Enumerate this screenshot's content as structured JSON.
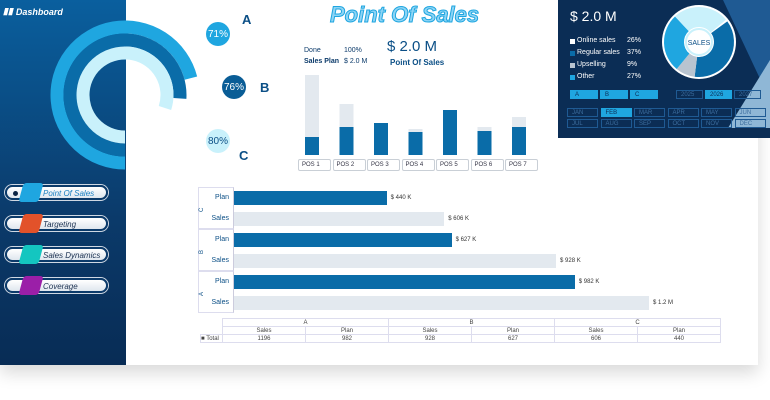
{
  "app": {
    "title": "Dashboard",
    "page_title": "Point Of Sales"
  },
  "sidebar": {
    "items": [
      {
        "label": "Point Of Sales",
        "color": "#1fa6e0",
        "active": true
      },
      {
        "label": "Targeting",
        "color": "#e2522a"
      },
      {
        "label": "Sales Dynamics",
        "color": "#14c6c0"
      },
      {
        "label": "Coverage",
        "color": "#9b1fa8"
      }
    ]
  },
  "rings": [
    {
      "group": "A",
      "percent": 71,
      "label": "71%",
      "color": "#1fa6e0"
    },
    {
      "group": "B",
      "percent": 76,
      "label": "76%",
      "color": "#0a6ca8"
    },
    {
      "group": "C",
      "percent": 80,
      "label": "80%",
      "color": "#c9f1fb"
    }
  ],
  "summary": {
    "done_label": "Done",
    "done_value": "100%",
    "plan_label": "Sales Plan",
    "plan_value": "$ 2.0 M",
    "total": "$ 2.0 M",
    "total_caption": "Point Of Sales"
  },
  "pos_chart": {
    "type": "bar",
    "categories": [
      "POS 1",
      "POS 2",
      "POS 3",
      "POS 4",
      "POS 5",
      "POS 6",
      "POS 7"
    ],
    "plan": [
      80,
      51,
      32,
      26,
      45,
      28,
      38
    ],
    "sales": [
      18,
      28,
      32,
      23,
      45,
      24,
      28
    ],
    "colors": {
      "plan": "#e3e9ef",
      "sales": "#0a6ca8"
    }
  },
  "panel": {
    "total": "$ 2.0 M",
    "donut_label": "SALES",
    "legend": [
      {
        "label": "Online sales",
        "value": "26%",
        "pct": 26,
        "color": "#ffffff",
        "slice": "#c9f1fb"
      },
      {
        "label": "Regular sales",
        "value": "37%",
        "pct": 37,
        "color": "#0a6ca8",
        "slice": "#0a6ca8"
      },
      {
        "label": "Upselling",
        "value": "9%",
        "pct": 9,
        "color": "#b8c4d0",
        "slice": "#b8c4d0"
      },
      {
        "label": "Other",
        "value": "27%",
        "pct": 27,
        "color": "#1fa6e0",
        "slice": "#1fa6e0"
      }
    ],
    "groups": [
      "A",
      "B",
      "C"
    ],
    "years": [
      {
        "label": "2025"
      },
      {
        "label": "2026",
        "active": true
      },
      {
        "label": "2027"
      }
    ],
    "months": [
      {
        "label": "JAN"
      },
      {
        "label": "FEB",
        "active": true
      },
      {
        "label": "MAR"
      },
      {
        "label": "APR"
      },
      {
        "label": "MAY"
      },
      {
        "label": "JUN"
      },
      {
        "label": "JUL"
      },
      {
        "label": "AUG"
      },
      {
        "label": "SEP"
      },
      {
        "label": "OCT"
      },
      {
        "label": "NOV"
      },
      {
        "label": "DEC"
      }
    ]
  },
  "hbar": {
    "groups": [
      {
        "name": "C",
        "rows": [
          {
            "label": "Plan",
            "value": 440,
            "text": "$ 440 K"
          },
          {
            "label": "Sales",
            "value": 606,
            "text": "$ 606 K"
          }
        ]
      },
      {
        "name": "B",
        "rows": [
          {
            "label": "Plan",
            "value": 627,
            "text": "$ 627 K"
          },
          {
            "label": "Sales",
            "value": 928,
            "text": "$ 928 K"
          }
        ]
      },
      {
        "name": "A",
        "rows": [
          {
            "label": "Plan",
            "value": 982,
            "text": "$ 982 K"
          },
          {
            "label": "Sales",
            "value": 1196,
            "text": "$ 1.2 M"
          }
        ]
      }
    ]
  },
  "table": {
    "groups": [
      "A",
      "B",
      "C"
    ],
    "headers": [
      "Sales",
      "Plan",
      "Sales",
      "Plan",
      "Sales",
      "Plan"
    ],
    "row_label": "Total",
    "values": [
      "1196",
      "982",
      "928",
      "627",
      "606",
      "440"
    ]
  }
}
